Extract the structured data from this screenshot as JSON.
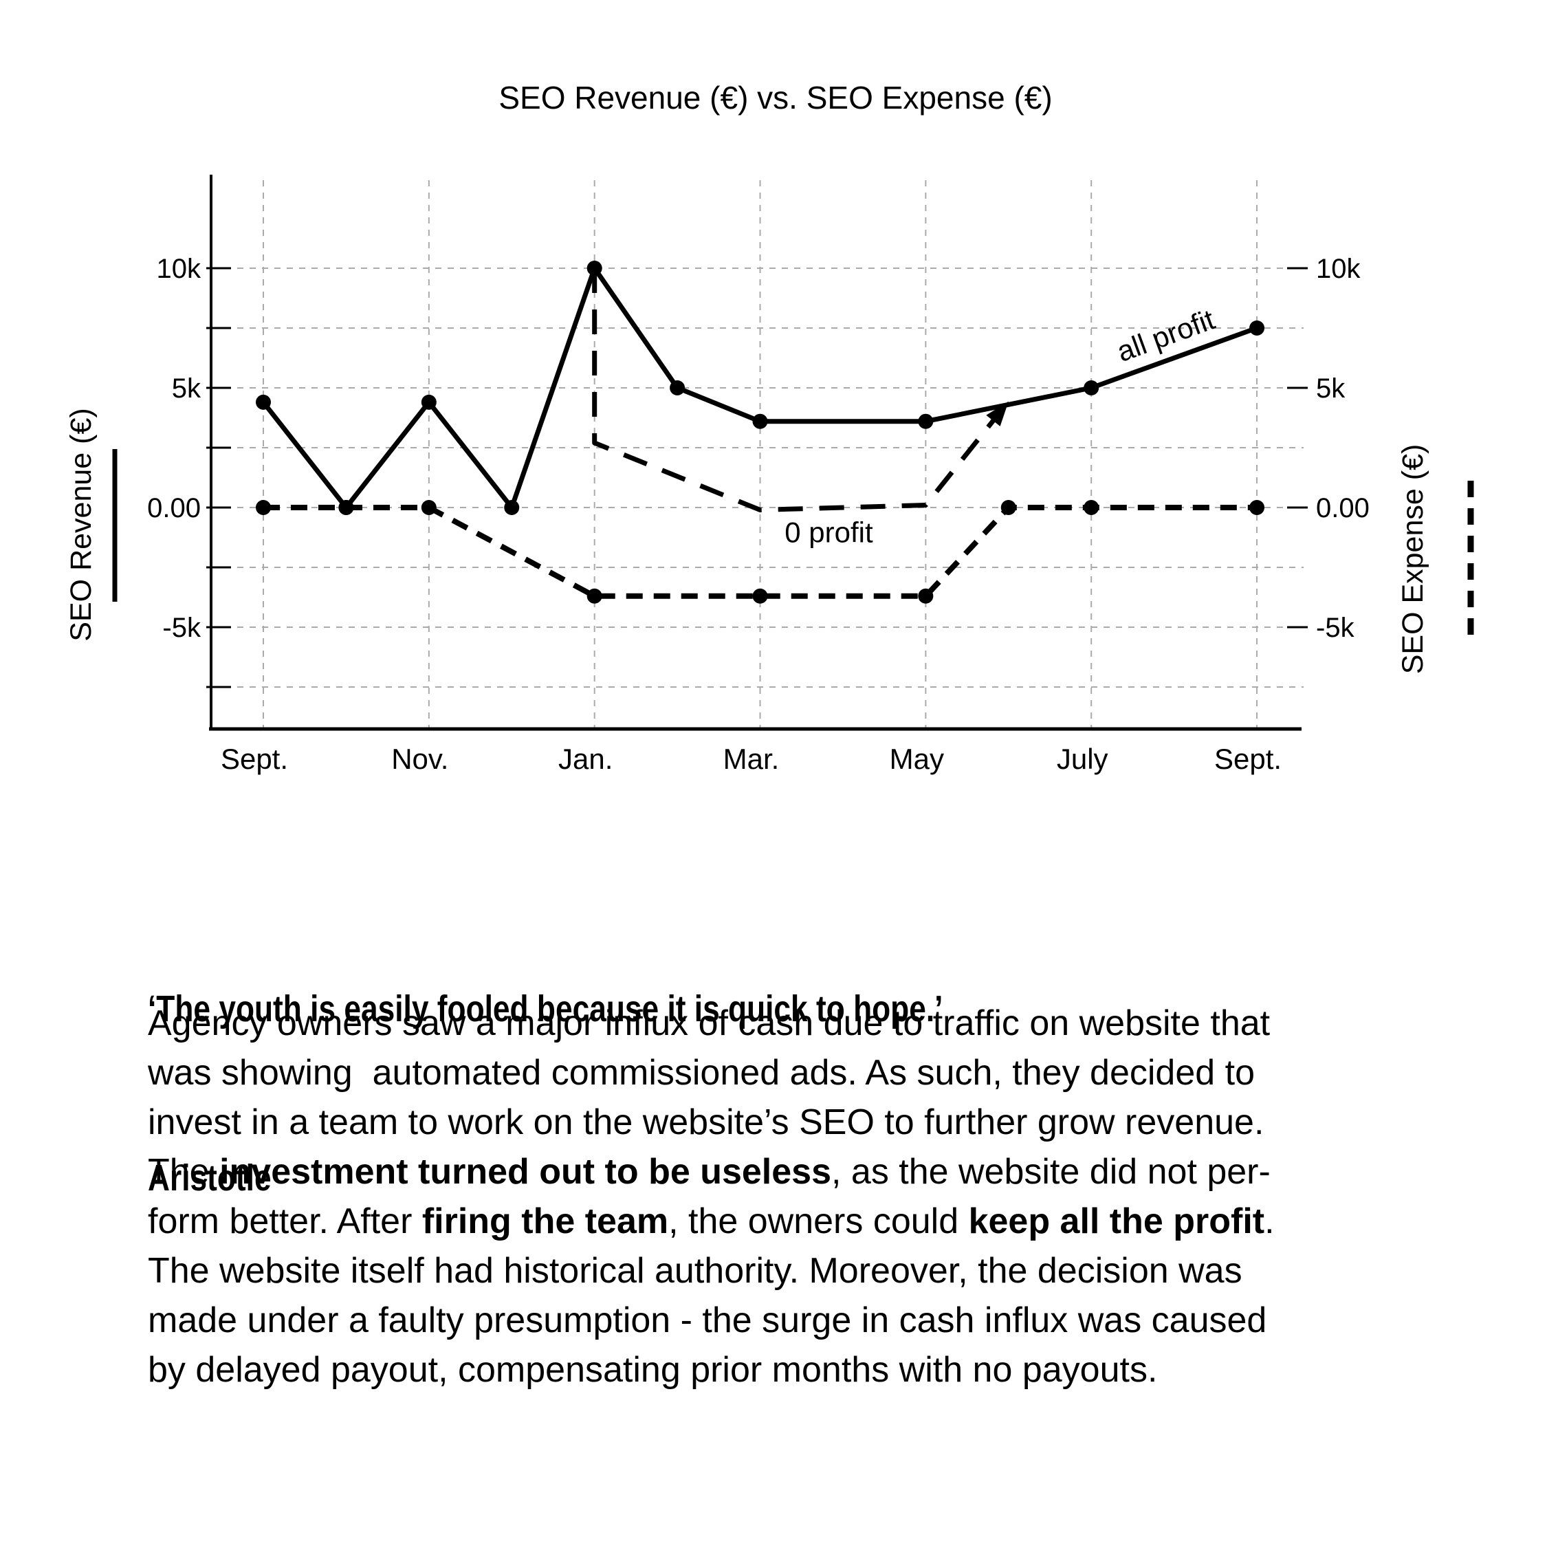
{
  "chart_data": {
    "type": "line",
    "title": "SEO Revenue (€) vs. SEO Expense (€)",
    "left_axis_label": "SEO Revenue (€)",
    "right_axis_label": "SEO Expense (€)",
    "x_tick_labels": [
      "Sept.",
      "Nov.",
      "Jan.",
      "Mar.",
      "May",
      "July",
      "Sept."
    ],
    "x_tick_positions": [
      0,
      2,
      4,
      6,
      8,
      10,
      12
    ],
    "x_month_span": 12,
    "y_major_ticks": [
      {
        "label": "10k",
        "value": 10000
      },
      {
        "label": "5k",
        "value": 5000
      },
      {
        "label": "0.00",
        "value": 0
      },
      {
        "label": "-5k",
        "value": -5000
      }
    ],
    "y_minor_tick_values": [
      7500,
      2500,
      -2500,
      -7500
    ],
    "ylim": [
      -9250,
      13800
    ],
    "grid": true,
    "legend_position": "sides",
    "series": [
      {
        "name": "SEO Revenue (€)",
        "style": "solid",
        "markers": true,
        "points": [
          [
            0,
            4400
          ],
          [
            1,
            0
          ],
          [
            2,
            4400
          ],
          [
            3,
            0
          ],
          [
            4,
            10000
          ],
          [
            5,
            5000
          ],
          [
            6,
            3600
          ],
          [
            8,
            3600
          ],
          [
            10,
            5000
          ],
          [
            12,
            7500
          ]
        ]
      },
      {
        "name": "SEO Expense (€)",
        "style": "dashed",
        "markers": true,
        "points": [
          [
            0,
            0
          ],
          [
            1,
            0
          ],
          [
            2,
            0
          ],
          [
            4,
            -3700
          ],
          [
            6,
            -3700
          ],
          [
            8,
            -3700
          ],
          [
            9,
            0
          ],
          [
            10,
            0
          ],
          [
            12,
            0
          ]
        ]
      },
      {
        "name": "profit guide",
        "style": "dashed-long",
        "markers": false,
        "arrow_end": true,
        "points": [
          [
            4,
            10000
          ],
          [
            4,
            2700
          ],
          [
            6,
            -100
          ],
          [
            8,
            100
          ],
          [
            8.97,
            4300
          ]
        ]
      }
    ],
    "annotations": [
      {
        "text": "0 profit",
        "x": 6.83,
        "y": -1450,
        "rotate": 0
      },
      {
        "text": "all profit",
        "x": 10.94,
        "y": 6800,
        "rotate": -20
      }
    ]
  },
  "quote": {
    "line1": "‘The youth is easily fooled because it is quick to hope.’",
    "line2": "Aristotle"
  },
  "paragraph": {
    "lines": [
      [
        {
          "t": "Agency owners saw a major influx of cash due to traffic on website that",
          "b": false
        }
      ],
      [
        {
          "t": "was showing  automated commissioned ads. As such, they decided to",
          "b": false
        }
      ],
      [
        {
          "t": "invest in a team to work on the website’s SEO to further grow revenue.",
          "b": false
        }
      ],
      [
        {
          "t": "The ",
          "b": false
        },
        {
          "t": "investment turned out to be useless",
          "b": true
        },
        {
          "t": ", as the website did not per-",
          "b": false
        }
      ],
      [
        {
          "t": "form better. After ",
          "b": false
        },
        {
          "t": "firing the team",
          "b": true
        },
        {
          "t": ", the owners could ",
          "b": false
        },
        {
          "t": "keep all the profit",
          "b": true
        },
        {
          "t": ".",
          "b": false
        }
      ],
      [
        {
          "t": "The website itself had historical authority. Moreover, the decision was",
          "b": false
        }
      ],
      [
        {
          "t": "made under a faulty presumption - the surge in cash influx was caused",
          "b": false
        }
      ],
      [
        {
          "t": "by delayed payout, compensating prior months with no payouts.",
          "b": false
        }
      ]
    ]
  }
}
